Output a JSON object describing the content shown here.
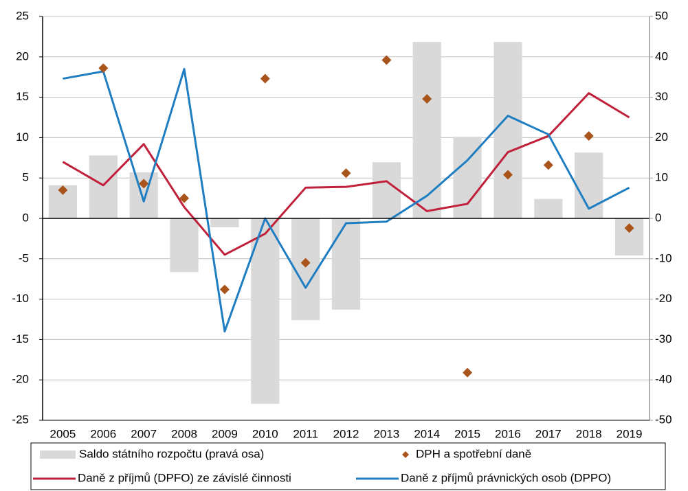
{
  "chart_data": {
    "type": "combo",
    "categories": [
      "2005",
      "2006",
      "2007",
      "2008",
      "2009",
      "2010",
      "2011",
      "2012",
      "2013",
      "2014",
      "2015",
      "2016",
      "2017",
      "2018",
      "2019"
    ],
    "series": [
      {
        "name": "Saldo státního rozpočtu (pravá osa)",
        "type": "bar",
        "axis": "y2",
        "color": "#d9d9d9",
        "values": [
          8.2,
          15.6,
          11.4,
          -13.3,
          -2.2,
          -45.9,
          -25.2,
          -22.6,
          13.9,
          43.7,
          20.2,
          43.7,
          4.8,
          16.3,
          -9.2
        ]
      },
      {
        "name": "DPH a spotřební daně",
        "type": "scatter",
        "color": "#a9541a",
        "values": [
          3.5,
          18.6,
          4.3,
          2.5,
          -8.8,
          17.3,
          -5.5,
          5.6,
          19.6,
          14.8,
          -19.1,
          5.4,
          6.6,
          10.2,
          -1.2
        ]
      },
      {
        "name": "Daně z příjmů (DPFO) ze závislé činnosti",
        "type": "line",
        "color": "#c0203a",
        "values": [
          7.0,
          4.1,
          9.2,
          1.4,
          -4.5,
          -1.9,
          3.8,
          3.9,
          4.6,
          0.9,
          1.8,
          8.2,
          10.2,
          15.5,
          12.5
        ]
      },
      {
        "name": "Daně z příjmů právnických osob (DPPO)",
        "type": "line",
        "color": "#1f7ec2",
        "values": [
          17.3,
          18.2,
          2.1,
          18.5,
          -14.0,
          0,
          -8.6,
          -0.6,
          -0.4,
          2.8,
          7.2,
          12.7,
          10.4,
          1.2,
          3.8
        ]
      }
    ],
    "ylim": [
      -25,
      25
    ],
    "yticks": [
      -25,
      -20,
      -15,
      -10,
      -5,
      0,
      5,
      10,
      15,
      20,
      25
    ],
    "y2lim": [
      -50,
      50
    ],
    "y2ticks": [
      -50,
      -40,
      -30,
      -20,
      -10,
      0,
      10,
      20,
      30,
      40,
      50
    ],
    "grid": true,
    "legend": "bottom"
  }
}
